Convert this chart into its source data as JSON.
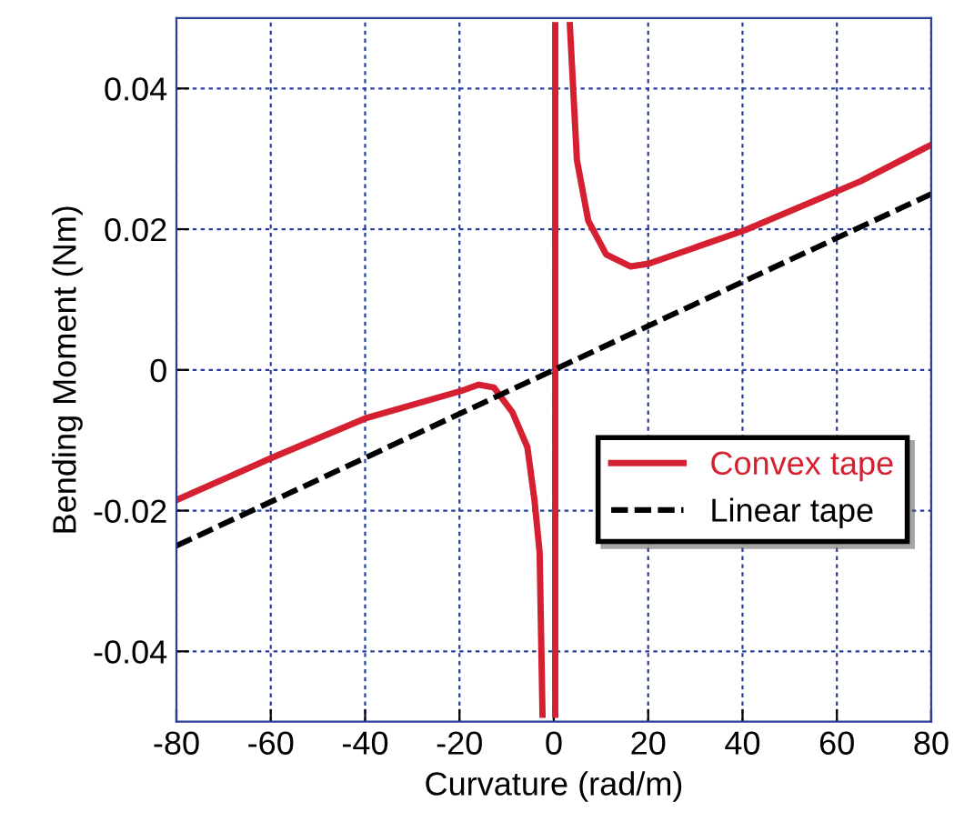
{
  "chart_data": {
    "type": "line",
    "xlabel": "Curvature (rad/m)",
    "ylabel": "Bending Moment (Nm)",
    "xlim": [
      -80,
      80
    ],
    "ylim": [
      -0.05,
      0.05
    ],
    "xticks": [
      -80,
      -60,
      -40,
      -20,
      0,
      20,
      40,
      60,
      80
    ],
    "yticks": [
      -0.04,
      -0.02,
      0,
      0.02,
      0.04
    ],
    "grid": true,
    "legend": "right",
    "marker": "none",
    "series": [
      {
        "name": "Convex tape",
        "color": "#d42030",
        "line_style": "solid",
        "x": [
          -80,
          -59.8,
          -40,
          -19.7,
          -15.9,
          -12.7,
          -8.8,
          -5.6,
          -4.1,
          -3.0,
          -2.4,
          0,
          0.3,
          0.3,
          2,
          3.4,
          4.9,
          7.3,
          11.1,
          16.3,
          20.1,
          40.7,
          65,
          80
        ],
        "values": [
          -0.0185,
          -0.0125,
          -0.0069,
          -0.003,
          -0.0021,
          -0.0025,
          -0.006,
          -0.011,
          -0.0185,
          -0.026,
          -0.049,
          null,
          -0.049,
          0.049,
          null,
          0.049,
          0.0298,
          0.0212,
          0.0164,
          0.0147,
          0.0151,
          0.0199,
          0.0268,
          0.032
        ]
      },
      {
        "name": "Linear tape",
        "color": "#000000",
        "line_style": "dashed",
        "x": [
          -80,
          80
        ],
        "values": [
          -0.025,
          0.025
        ]
      }
    ]
  }
}
